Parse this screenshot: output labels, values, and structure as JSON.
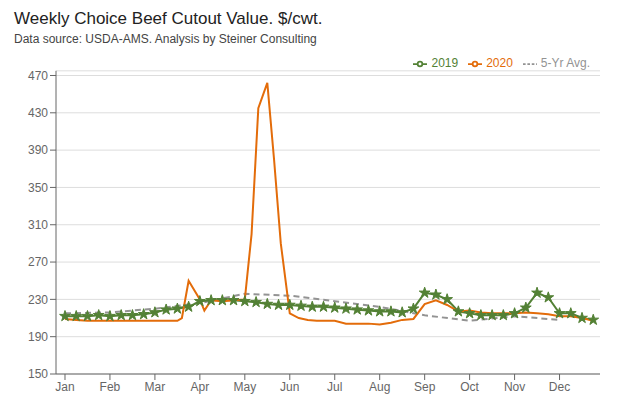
{
  "chart_data": {
    "type": "line",
    "title": "Weekly Choice Beef Cutout Value.  $/cwt.",
    "subtitle": "Data source:  USDA-AMS.  Analysis by Steiner Consulting",
    "xlim": [
      -0.2,
      11.9
    ],
    "xticks": [
      {
        "value": 0,
        "label": "Jan"
      },
      {
        "value": 1,
        "label": "Feb"
      },
      {
        "value": 2,
        "label": "Mar"
      },
      {
        "value": 3,
        "label": "Apr"
      },
      {
        "value": 4,
        "label": "May"
      },
      {
        "value": 5,
        "label": "Jun"
      },
      {
        "value": 6,
        "label": "Jul"
      },
      {
        "value": 7,
        "label": "Aug"
      },
      {
        "value": 8,
        "label": "Sep"
      },
      {
        "value": 9,
        "label": "Oct"
      },
      {
        "value": 10,
        "label": "Nov"
      },
      {
        "value": 11,
        "label": "Dec"
      }
    ],
    "ylim": [
      150,
      475
    ],
    "yticks": [
      150,
      190,
      230,
      270,
      310,
      350,
      390,
      430,
      470
    ],
    "grid": "y",
    "legend": "upper right",
    "series": [
      {
        "name": "5-Yr Avg.",
        "color": "#939393",
        "line_style": "dashed",
        "marker": "none",
        "x": [
          0,
          1,
          2,
          3,
          4,
          5,
          6,
          7,
          8,
          9,
          10,
          11
        ],
        "values": [
          215,
          216,
          220,
          226,
          236,
          234,
          228,
          222,
          213,
          207,
          212,
          208
        ]
      },
      {
        "name": "2019",
        "color": "#538135",
        "line_style": "solid",
        "marker": "star",
        "x": [
          0,
          0.25,
          0.5,
          0.75,
          1.0,
          1.25,
          1.5,
          1.75,
          2.0,
          2.25,
          2.5,
          2.75,
          3.0,
          3.25,
          3.5,
          3.75,
          4.0,
          4.25,
          4.5,
          4.75,
          5.0,
          5.25,
          5.5,
          5.75,
          6.0,
          6.25,
          6.5,
          6.75,
          7.0,
          7.25,
          7.5,
          7.75,
          8.0,
          8.25,
          8.5,
          8.75,
          9.0,
          9.25,
          9.5,
          9.75,
          10.0,
          10.25,
          10.5,
          10.75,
          11.0,
          11.25,
          11.5,
          11.75
        ],
        "values": [
          212,
          212,
          212,
          213,
          212,
          213,
          213,
          214,
          216,
          219,
          220,
          222,
          228,
          229,
          229,
          229,
          228,
          227,
          225,
          224,
          224,
          223,
          222,
          222,
          221,
          220,
          219,
          218,
          217,
          217,
          216,
          220,
          237,
          235,
          230,
          217,
          215,
          213,
          213,
          213,
          215,
          221,
          237,
          232,
          215,
          215,
          210,
          208
        ]
      },
      {
        "name": "2020",
        "color": "#E36C0A",
        "line_style": "solid",
        "marker": "none",
        "x": [
          0,
          0.25,
          0.5,
          0.75,
          1.0,
          1.25,
          1.5,
          1.75,
          2.0,
          2.25,
          2.5,
          2.6,
          2.75,
          3.0,
          3.1,
          3.25,
          3.5,
          3.75,
          4.0,
          4.15,
          4.3,
          4.5,
          4.65,
          4.8,
          5.0,
          5.2,
          5.4,
          5.6,
          5.75,
          6.0,
          6.25,
          6.5,
          6.75,
          7.0,
          7.25,
          7.5,
          7.75,
          8.0,
          8.25,
          8.5,
          8.75,
          9.0,
          9.25,
          9.5,
          9.75,
          10.0,
          10.25,
          10.5,
          10.75,
          11.0,
          11.25,
          11.5,
          11.75
        ],
        "values": [
          209,
          208,
          207,
          207,
          207,
          207,
          207,
          207,
          207,
          207,
          207,
          210,
          250,
          230,
          218,
          229,
          228,
          229,
          230,
          300,
          435,
          462,
          380,
          290,
          215,
          210,
          208,
          207,
          207,
          207,
          204,
          204,
          204,
          203,
          205,
          208,
          209,
          225,
          229,
          224,
          217,
          218,
          216,
          215,
          215,
          215,
          216,
          215,
          214,
          212,
          212,
          210,
          207
        ]
      }
    ]
  }
}
